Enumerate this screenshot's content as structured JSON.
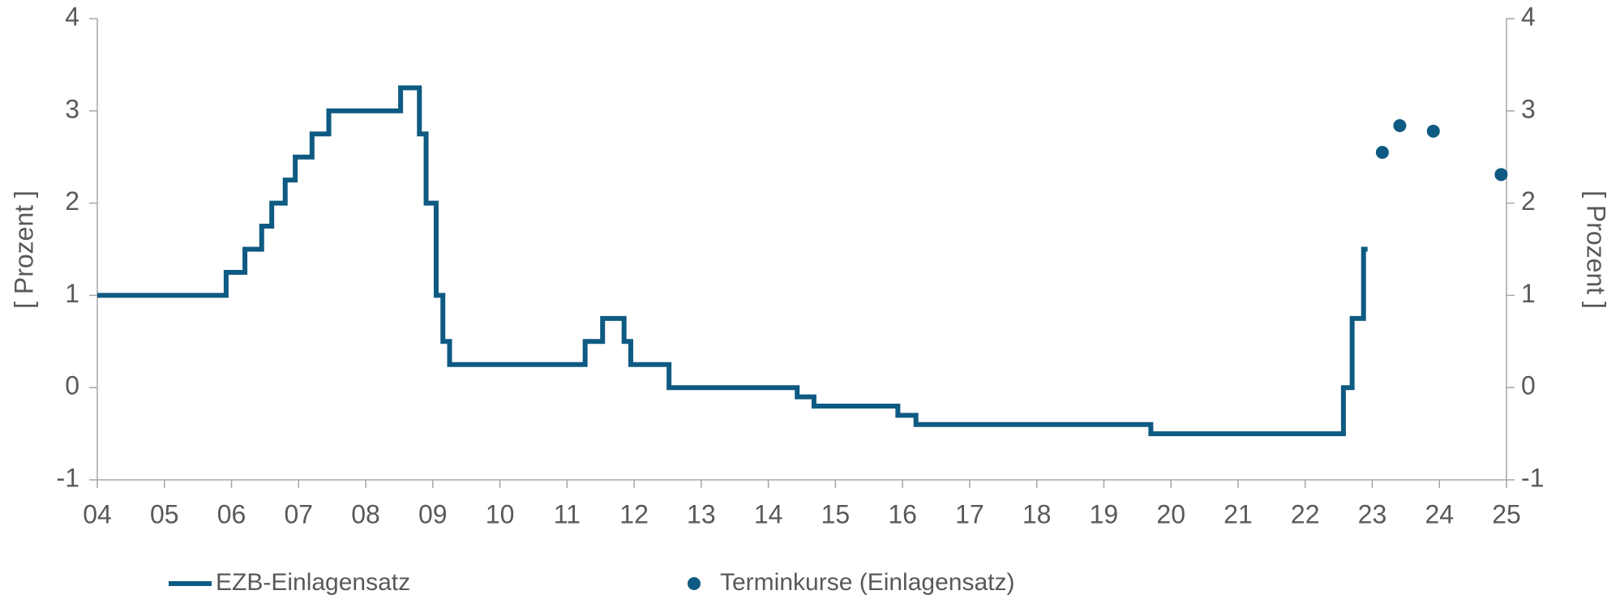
{
  "chart_data": {
    "type": "step",
    "y_label": "[ Prozent ]",
    "y2_label": "[ Prozent ]",
    "xlim": [
      2004,
      2025
    ],
    "xticks": [
      {
        "value": 2004,
        "label": "04"
      },
      {
        "value": 2005,
        "label": "05"
      },
      {
        "value": 2006,
        "label": "06"
      },
      {
        "value": 2007,
        "label": "07"
      },
      {
        "value": 2008,
        "label": "08"
      },
      {
        "value": 2009,
        "label": "09"
      },
      {
        "value": 2010,
        "label": "10"
      },
      {
        "value": 2011,
        "label": "11"
      },
      {
        "value": 2012,
        "label": "12"
      },
      {
        "value": 2013,
        "label": "13"
      },
      {
        "value": 2014,
        "label": "14"
      },
      {
        "value": 2015,
        "label": "15"
      },
      {
        "value": 2016,
        "label": "16"
      },
      {
        "value": 2017,
        "label": "17"
      },
      {
        "value": 2018,
        "label": "18"
      },
      {
        "value": 2019,
        "label": "19"
      },
      {
        "value": 2020,
        "label": "20"
      },
      {
        "value": 2021,
        "label": "21"
      },
      {
        "value": 2022,
        "label": "22"
      },
      {
        "value": 2023,
        "label": "23"
      },
      {
        "value": 2024,
        "label": "24"
      },
      {
        "value": 2025,
        "label": "25"
      }
    ],
    "ylim": [
      -1,
      4
    ],
    "yticks": [
      -1,
      0,
      1,
      2,
      3,
      4
    ],
    "y2lim": [
      -1,
      4
    ],
    "y2ticks": [
      -1,
      0,
      1,
      2,
      3,
      4
    ],
    "series": [
      {
        "name": "EZB-Einlagensatz",
        "color": "#0e5a82",
        "step": "post",
        "x": [
          2004.0,
          2005.92,
          2006.2,
          2006.45,
          2006.6,
          2006.8,
          2006.95,
          2007.2,
          2007.45,
          2008.52,
          2008.8,
          2008.9,
          2009.05,
          2009.15,
          2009.25,
          2011.27,
          2011.53,
          2011.85,
          2011.95,
          2012.52,
          2014.43,
          2014.68,
          2015.93,
          2016.2,
          2019.7,
          2022.57,
          2022.7,
          2022.87,
          2022.93
        ],
        "values": [
          1.0,
          1.25,
          1.5,
          1.75,
          2.0,
          2.25,
          2.5,
          2.75,
          3.0,
          3.25,
          2.75,
          2.0,
          1.0,
          0.5,
          0.25,
          0.5,
          0.75,
          0.5,
          0.25,
          0.0,
          -0.1,
          -0.2,
          -0.3,
          -0.4,
          -0.5,
          0.0,
          0.75,
          1.5,
          1.5
        ]
      },
      {
        "name": "Terminkurse (Einlagensatz)",
        "color": "#0e5a82",
        "marker": "dot",
        "axis": "y2",
        "x": [
          2023.15,
          2023.41,
          2023.91,
          2024.92
        ],
        "values": [
          2.55,
          2.84,
          2.78,
          2.31
        ]
      }
    ]
  }
}
